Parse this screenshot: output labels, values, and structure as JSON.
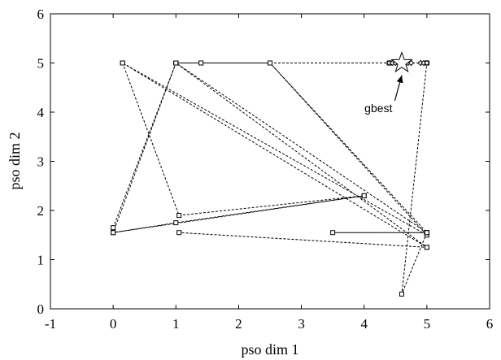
{
  "chart_data": {
    "type": "line",
    "title": "",
    "xlabel": "pso dim 1",
    "ylabel": "pso dim 2",
    "xlim": [
      -1,
      6
    ],
    "ylim": [
      0,
      6
    ],
    "xticks": [
      -1,
      0,
      1,
      2,
      3,
      4,
      5,
      6
    ],
    "yticks": [
      0,
      1,
      2,
      3,
      4,
      5,
      6
    ],
    "xtick_labels": [
      "-1",
      "0",
      "1",
      "2",
      "3",
      "4",
      "5",
      "6"
    ],
    "ytick_labels": [
      "0",
      "1",
      "2",
      "3",
      "4",
      "5",
      "6"
    ],
    "grid": false,
    "legend": "none",
    "series": [
      {
        "line_style": "dashed",
        "marker": "square",
        "points": [
          [
            0.15,
            5.0
          ],
          [
            1.05,
            1.9
          ],
          [
            4.0,
            2.3
          ],
          [
            0.0,
            1.55
          ],
          [
            1.0,
            5.0
          ],
          [
            5.0,
            1.25
          ],
          [
            1.05,
            1.55
          ],
          [
            5.0,
            1.25
          ],
          [
            0.15,
            5.0
          ],
          [
            5.0,
            1.5
          ],
          [
            2.5,
            5.0
          ],
          [
            5.0,
            1.55
          ],
          [
            3.5,
            1.55
          ],
          [
            5.0,
            1.55
          ]
        ]
      },
      {
        "line_style": "dashed",
        "marker": "square",
        "points": [
          [
            0.0,
            1.65
          ],
          [
            1.0,
            5.0
          ],
          [
            1.0,
            5.0
          ],
          [
            5.0,
            1.55
          ],
          [
            4.6,
            0.3
          ],
          [
            5.0,
            5.0
          ]
        ]
      },
      {
        "line_style": "solid",
        "marker": "square",
        "points": [
          [
            1.0,
            5.0
          ],
          [
            1.4,
            5.0
          ],
          [
            2.5,
            5.0
          ]
        ]
      },
      {
        "line_style": "dashed",
        "marker": "square",
        "points": [
          [
            2.5,
            5.0
          ],
          [
            4.4,
            5.0
          ],
          [
            5.0,
            5.0
          ]
        ]
      },
      {
        "line_style": "dashed",
        "marker": "square",
        "points": [
          [
            0.0,
            1.55
          ],
          [
            1.0,
            1.75
          ],
          [
            4.0,
            2.3
          ]
        ]
      },
      {
        "line_style": "none",
        "marker": "diamond",
        "points": [
          [
            4.4,
            5.0
          ],
          [
            4.45,
            5.0
          ],
          [
            4.5,
            5.0
          ],
          [
            4.55,
            5.0
          ],
          [
            4.6,
            5.0
          ],
          [
            4.65,
            5.0
          ],
          [
            4.7,
            5.0
          ],
          [
            4.75,
            5.0
          ],
          [
            4.9,
            5.0
          ],
          [
            4.95,
            5.0
          ],
          [
            5.0,
            5.0
          ]
        ]
      }
    ],
    "best_point": {
      "x": 4.6,
      "y": 5.0,
      "marker": "star"
    },
    "annotations": [
      {
        "text": "gbest",
        "x": 4.45,
        "y": 4.0,
        "arrow_to": [
          4.6,
          4.75
        ]
      }
    ]
  }
}
